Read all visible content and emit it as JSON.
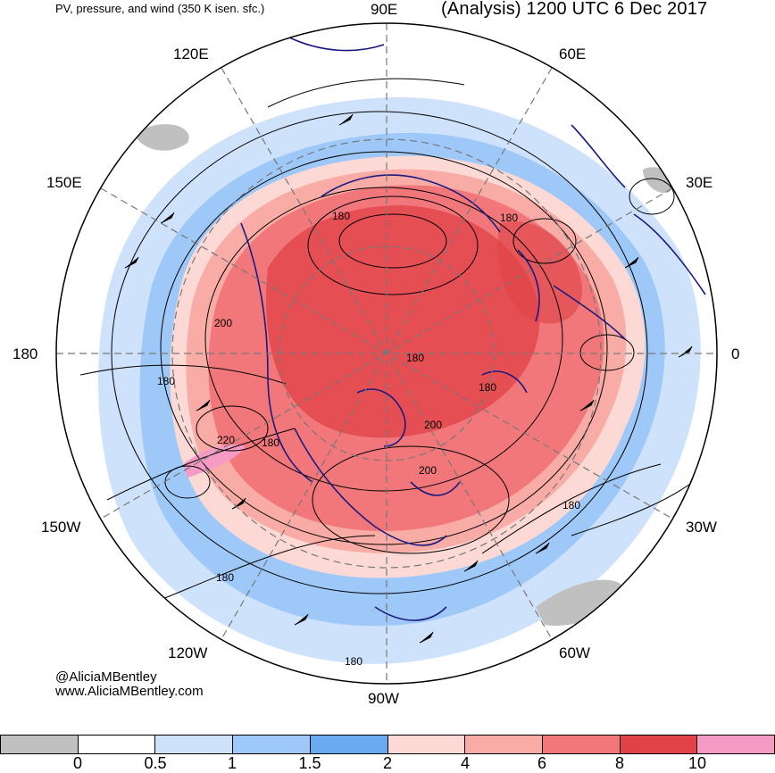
{
  "header": {
    "product": "PV, pressure, and wind (350 K isen. sfc.)",
    "valid": "(Analysis) 1200 UTC 6 Dec 2017"
  },
  "map": {
    "projection": "north-polar-stereographic",
    "longitude_labels": {
      "e90": "90E",
      "e60": "60E",
      "e120": "120E",
      "e30": "30E",
      "e150": "150E",
      "d180": "180",
      "d0": "0",
      "w150": "150W",
      "w30": "30W",
      "w120": "120W",
      "w60": "60W",
      "w90": "90W"
    },
    "contour_labels": [
      "180",
      "180",
      "200",
      "180",
      "220",
      "180",
      "180",
      "200",
      "180",
      "180",
      "200",
      "180",
      "180"
    ]
  },
  "credits": {
    "handle": "@AliciaMBentley",
    "website": "www.AliciaMBentley.com"
  },
  "colorbar": {
    "colors": [
      "#c0c0c0",
      "#ffffff",
      "#cfe2fb",
      "#9ec8f7",
      "#6aaaf0",
      "#fcd9d4",
      "#f9aca6",
      "#f1777a",
      "#e04247",
      "#f59ac4"
    ],
    "labels": [
      "0",
      "0.5",
      "1",
      "1.5",
      "2",
      "4",
      "6",
      "8",
      "10"
    ]
  }
}
